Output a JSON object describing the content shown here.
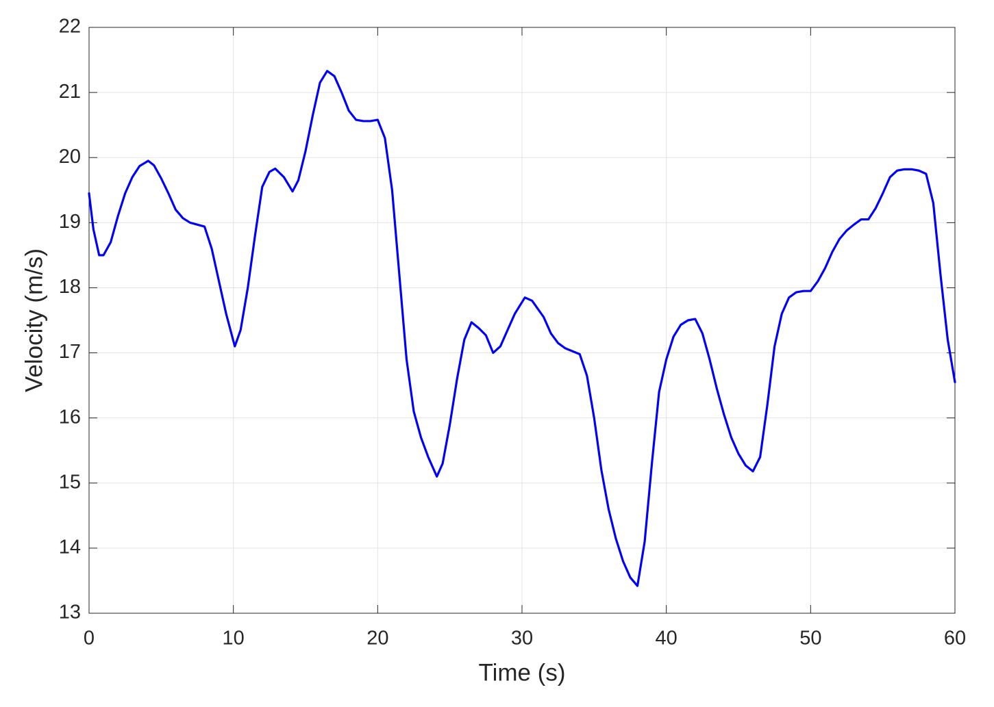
{
  "chart_data": {
    "type": "line",
    "x_label": "Time (s)",
    "y_label": "Velocity (m/s)",
    "x": [
      0,
      0.3,
      0.7,
      1,
      1.5,
      2,
      2.5,
      3,
      3.5,
      4.1,
      4.5,
      5,
      5.5,
      6,
      6.5,
      7,
      8,
      8.5,
      9,
      9.5,
      10.1,
      10.5,
      11,
      11.5,
      12,
      12.5,
      12.9,
      13.5,
      14.1,
      14.5,
      15,
      15.5,
      16,
      16.5,
      17,
      17.5,
      18,
      18.5,
      19,
      19.5,
      20,
      20.5,
      21,
      21.5,
      22,
      22.5,
      23,
      23.5,
      24.1,
      24.5,
      25,
      25.5,
      26,
      26.5,
      27,
      27.5,
      28,
      28.5,
      29,
      29.5,
      30.2,
      30.7,
      31.5,
      32,
      32.5,
      33,
      34,
      34.5,
      35,
      35.5,
      36,
      36.5,
      37,
      37.5,
      38,
      38.5,
      39,
      39.5,
      40,
      40.5,
      41,
      41.5,
      42,
      42.5,
      43,
      43.5,
      44,
      44.5,
      45,
      45.5,
      46,
      46.5,
      47,
      47.5,
      48,
      48.5,
      49,
      49.5,
      50,
      50.5,
      51,
      51.5,
      52,
      52.5,
      53,
      53.5,
      54,
      54.5,
      55,
      55.5,
      56,
      56.5,
      57,
      57.5,
      58,
      58.5,
      59,
      59.5,
      60
    ],
    "values": [
      19.45,
      18.9,
      18.5,
      18.5,
      18.7,
      19.1,
      19.45,
      19.7,
      19.87,
      19.95,
      19.88,
      19.68,
      19.45,
      19.2,
      19.07,
      19.0,
      18.94,
      18.6,
      18.1,
      17.6,
      17.1,
      17.35,
      18.0,
      18.8,
      19.55,
      19.78,
      19.83,
      19.7,
      19.48,
      19.65,
      20.1,
      20.65,
      21.15,
      21.33,
      21.25,
      21.0,
      20.72,
      20.58,
      20.56,
      20.56,
      20.58,
      20.3,
      19.5,
      18.2,
      16.9,
      16.1,
      15.7,
      15.4,
      15.1,
      15.3,
      15.9,
      16.6,
      17.2,
      17.47,
      17.38,
      17.27,
      17.0,
      17.1,
      17.35,
      17.6,
      17.85,
      17.8,
      17.55,
      17.3,
      17.15,
      17.07,
      16.98,
      16.65,
      16.0,
      15.2,
      14.6,
      14.15,
      13.8,
      13.55,
      13.42,
      14.1,
      15.3,
      16.4,
      16.9,
      17.25,
      17.43,
      17.5,
      17.52,
      17.3,
      16.9,
      16.45,
      16.05,
      15.7,
      15.45,
      15.27,
      15.18,
      15.4,
      16.2,
      17.1,
      17.6,
      17.85,
      17.93,
      17.95,
      17.95,
      18.1,
      18.3,
      18.55,
      18.75,
      18.88,
      18.97,
      19.05,
      19.05,
      19.22,
      19.45,
      19.7,
      19.8,
      19.82,
      19.82,
      19.8,
      19.75,
      19.3,
      18.2,
      17.2,
      16.55
    ],
    "color": "#0000ff",
    "xlim": [
      0,
      60
    ],
    "xticks": [
      0,
      10,
      20,
      30,
      40,
      50,
      60
    ],
    "ylim": [
      13,
      22
    ],
    "yticks": [
      13,
      14,
      15,
      16,
      17,
      18,
      19,
      20,
      21,
      22
    ],
    "grid": true
  }
}
